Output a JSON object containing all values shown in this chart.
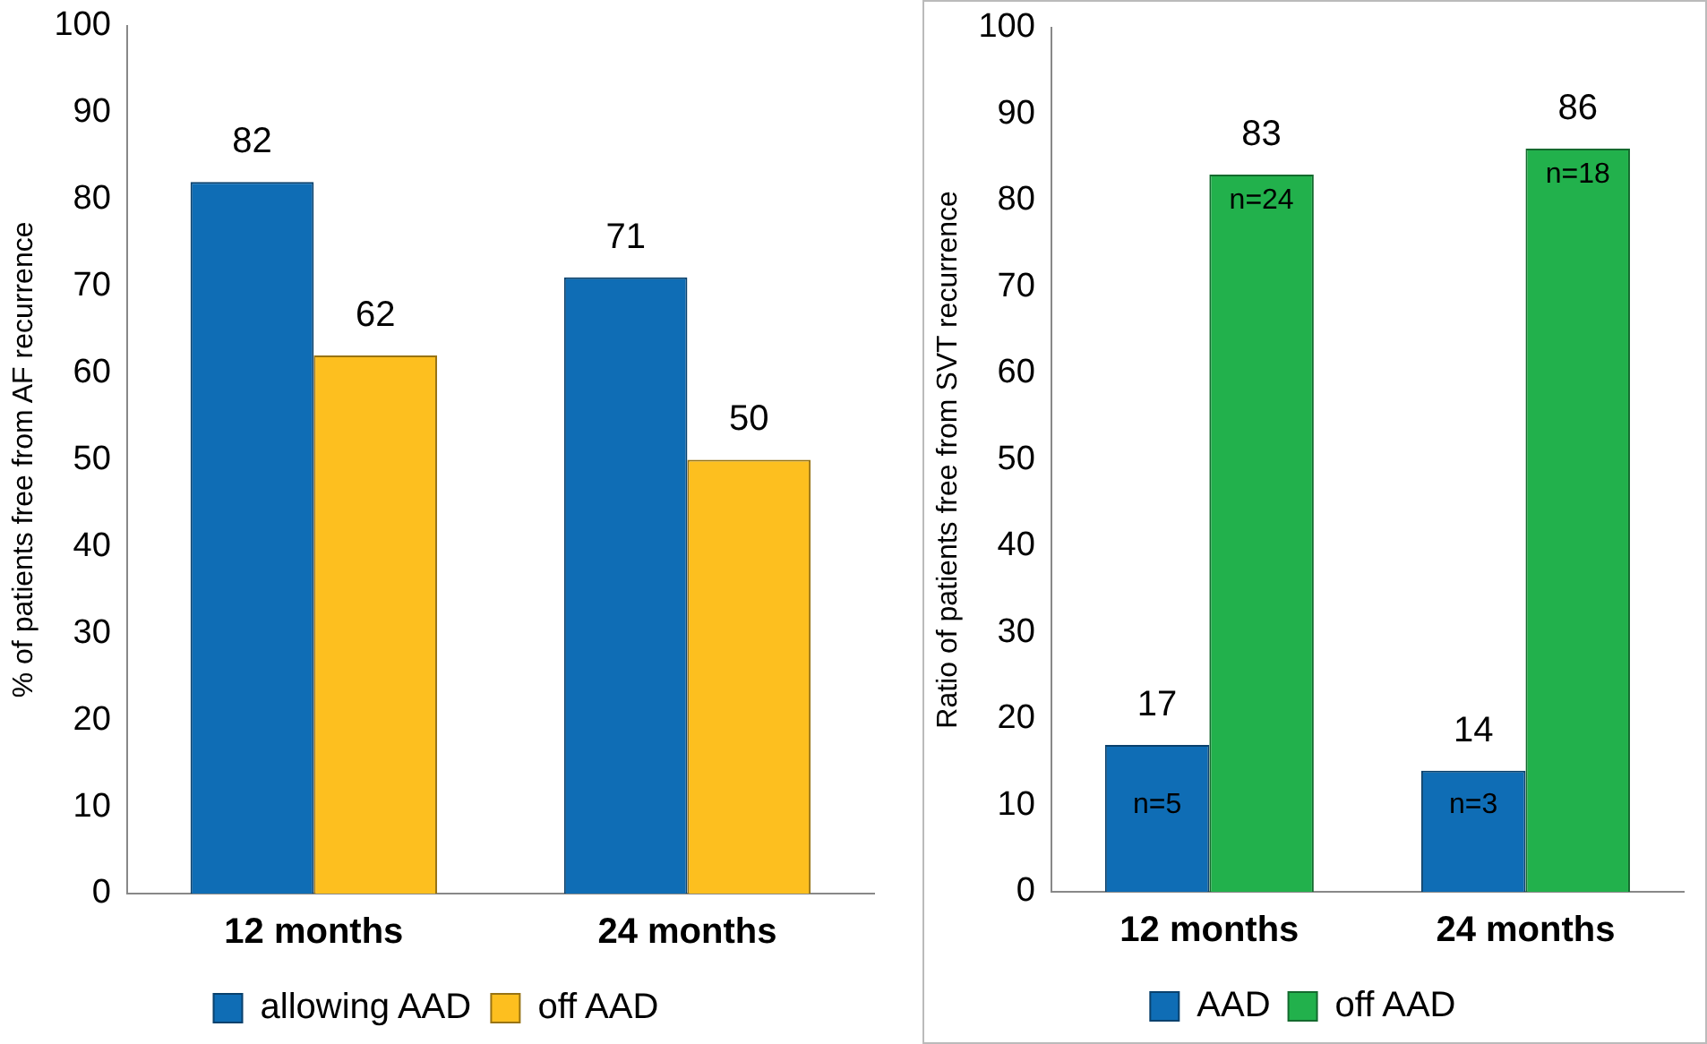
{
  "chart_data": [
    {
      "type": "bar",
      "ylabel": "% of patients free from AF recurrence",
      "categories": [
        "12 months",
        "24 months"
      ],
      "series": [
        {
          "name": "allowing AAD",
          "color": "#0f6db5",
          "values": [
            82,
            71
          ]
        },
        {
          "name": "off AAD",
          "color": "#fdbf1f",
          "values": [
            62,
            50
          ]
        }
      ],
      "ylim": [
        0,
        100
      ],
      "yticks": [
        0,
        10,
        20,
        30,
        40,
        50,
        60,
        70,
        80,
        90,
        100
      ],
      "grid": false,
      "legend": "bottom",
      "data_labels": true
    },
    {
      "type": "bar",
      "ylabel": "Ratio of patients free from SVT recurrence",
      "categories": [
        "12 months",
        "24 months"
      ],
      "series": [
        {
          "name": "AAD",
          "color": "#0f6db5",
          "values": [
            17,
            14
          ]
        },
        {
          "name": "off AAD",
          "color": "#22b14c",
          "values": [
            83,
            86
          ]
        }
      ],
      "ylim": [
        0,
        100
      ],
      "yticks": [
        0,
        10,
        20,
        30,
        40,
        50,
        60,
        70,
        80,
        90,
        100
      ],
      "grid": false,
      "legend": "bottom",
      "data_labels": true,
      "annotations": [
        {
          "text": "n=5",
          "x": "12 months",
          "y": 10
        },
        {
          "text": "n=24",
          "x": "12 months",
          "y": 80
        },
        {
          "text": "n=3",
          "x": "24 months",
          "y": 10
        },
        {
          "text": "n=18",
          "x": "24 months",
          "y": 83
        }
      ]
    }
  ]
}
